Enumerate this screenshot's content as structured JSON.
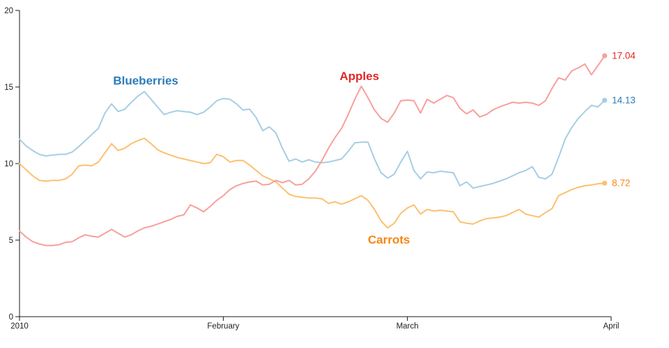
{
  "chart_data": {
    "type": "line",
    "title": "",
    "grid": false,
    "legend": "inline-series-labels",
    "axis_color": "#1a1a1a",
    "tick_label_color": "#1f1f1f",
    "x_axis": {
      "unit": "days since 2010-01-01",
      "range_days": [
        0,
        90
      ],
      "ticks": [
        {
          "label": "2010",
          "day": 0
        },
        {
          "label": "February",
          "day": 31
        },
        {
          "label": "March",
          "day": 59
        },
        {
          "label": "April",
          "day": 90
        }
      ]
    },
    "y_axis": {
      "min": 0,
      "max": 20,
      "ticks": [
        0,
        5,
        10,
        15,
        20
      ]
    },
    "series": [
      {
        "name": "Blueberries",
        "line_color": "#a6cee3",
        "label_color": "#2b7cba",
        "label_anchor": {
          "day": 19.2,
          "value": 15.15
        },
        "end_value": 14.13,
        "end_label": "14.13",
        "values": [
          11.6,
          11.15,
          10.85,
          10.6,
          10.5,
          10.55,
          10.6,
          10.6,
          10.75,
          11.1,
          11.5,
          11.9,
          12.3,
          13.3,
          13.9,
          13.4,
          13.55,
          14.0,
          14.4,
          14.7,
          14.2,
          13.7,
          13.2,
          13.35,
          13.45,
          13.4,
          13.35,
          13.2,
          13.35,
          13.7,
          14.1,
          14.25,
          14.2,
          13.9,
          13.5,
          13.55,
          13.0,
          12.15,
          12.4,
          12.0,
          11.0,
          10.15,
          10.3,
          10.1,
          10.25,
          10.1,
          10.05,
          10.1,
          10.2,
          10.3,
          10.8,
          11.35,
          11.4,
          11.4,
          10.3,
          9.4,
          9.05,
          9.3,
          10.1,
          10.8,
          9.55,
          9.0,
          9.45,
          9.4,
          9.5,
          9.45,
          9.4,
          8.55,
          8.8,
          8.4,
          8.5,
          8.6,
          8.7,
          8.85,
          9.0,
          9.2,
          9.4,
          9.55,
          9.8,
          9.1,
          9.0,
          9.3,
          10.4,
          11.6,
          12.35,
          12.95,
          13.4,
          13.8,
          13.7,
          14.13
        ]
      },
      {
        "name": "Carrots",
        "line_color": "#fcc06f",
        "label_color": "#f78613",
        "label_anchor": {
          "day": 56.2,
          "value": 4.77
        },
        "end_value": 8.72,
        "end_label": "8.72",
        "values": [
          10.0,
          9.6,
          9.2,
          8.9,
          8.85,
          8.9,
          8.9,
          9.0,
          9.3,
          9.85,
          9.9,
          9.85,
          10.1,
          10.7,
          11.3,
          10.85,
          11.0,
          11.3,
          11.5,
          11.65,
          11.3,
          10.9,
          10.7,
          10.55,
          10.4,
          10.3,
          10.2,
          10.1,
          10.0,
          10.05,
          10.6,
          10.45,
          10.1,
          10.2,
          10.2,
          9.9,
          9.55,
          9.2,
          9.0,
          8.8,
          8.4,
          8.0,
          7.85,
          7.8,
          7.75,
          7.75,
          7.7,
          7.4,
          7.5,
          7.35,
          7.5,
          7.7,
          7.9,
          7.6,
          7.0,
          6.25,
          5.8,
          6.1,
          6.75,
          7.1,
          7.3,
          6.7,
          7.0,
          6.9,
          6.95,
          6.9,
          6.85,
          6.2,
          6.1,
          6.05,
          6.25,
          6.4,
          6.45,
          6.5,
          6.6,
          6.8,
          7.0,
          6.7,
          6.6,
          6.5,
          6.8,
          7.05,
          7.9,
          8.1,
          8.3,
          8.45,
          8.55,
          8.6,
          8.68,
          8.72
        ]
      },
      {
        "name": "Apples",
        "line_color": "#f89f9d",
        "label_color": "#e32726",
        "label_anchor": {
          "day": 51.7,
          "value": 15.45
        },
        "end_value": 17.04,
        "end_label": "17.04",
        "values": [
          5.6,
          5.2,
          4.9,
          4.75,
          4.65,
          4.65,
          4.7,
          4.85,
          4.9,
          5.15,
          5.35,
          5.25,
          5.2,
          5.45,
          5.7,
          5.45,
          5.2,
          5.35,
          5.6,
          5.8,
          5.9,
          6.05,
          6.2,
          6.35,
          6.55,
          6.65,
          7.3,
          7.1,
          6.85,
          7.2,
          7.6,
          7.9,
          8.3,
          8.55,
          8.7,
          8.8,
          8.85,
          8.6,
          8.65,
          8.9,
          8.75,
          8.9,
          8.6,
          8.65,
          9.0,
          9.5,
          10.2,
          11.0,
          11.7,
          12.3,
          13.2,
          14.2,
          15.05,
          14.3,
          13.5,
          12.95,
          12.7,
          13.3,
          14.1,
          14.15,
          14.1,
          13.3,
          14.2,
          13.95,
          14.2,
          14.45,
          14.3,
          13.6,
          13.25,
          13.5,
          13.05,
          13.2,
          13.5,
          13.7,
          13.85,
          14.0,
          13.95,
          14.0,
          13.95,
          13.8,
          14.1,
          14.9,
          15.6,
          15.45,
          16.05,
          16.25,
          16.5,
          15.8,
          16.4,
          17.04
        ]
      }
    ]
  }
}
